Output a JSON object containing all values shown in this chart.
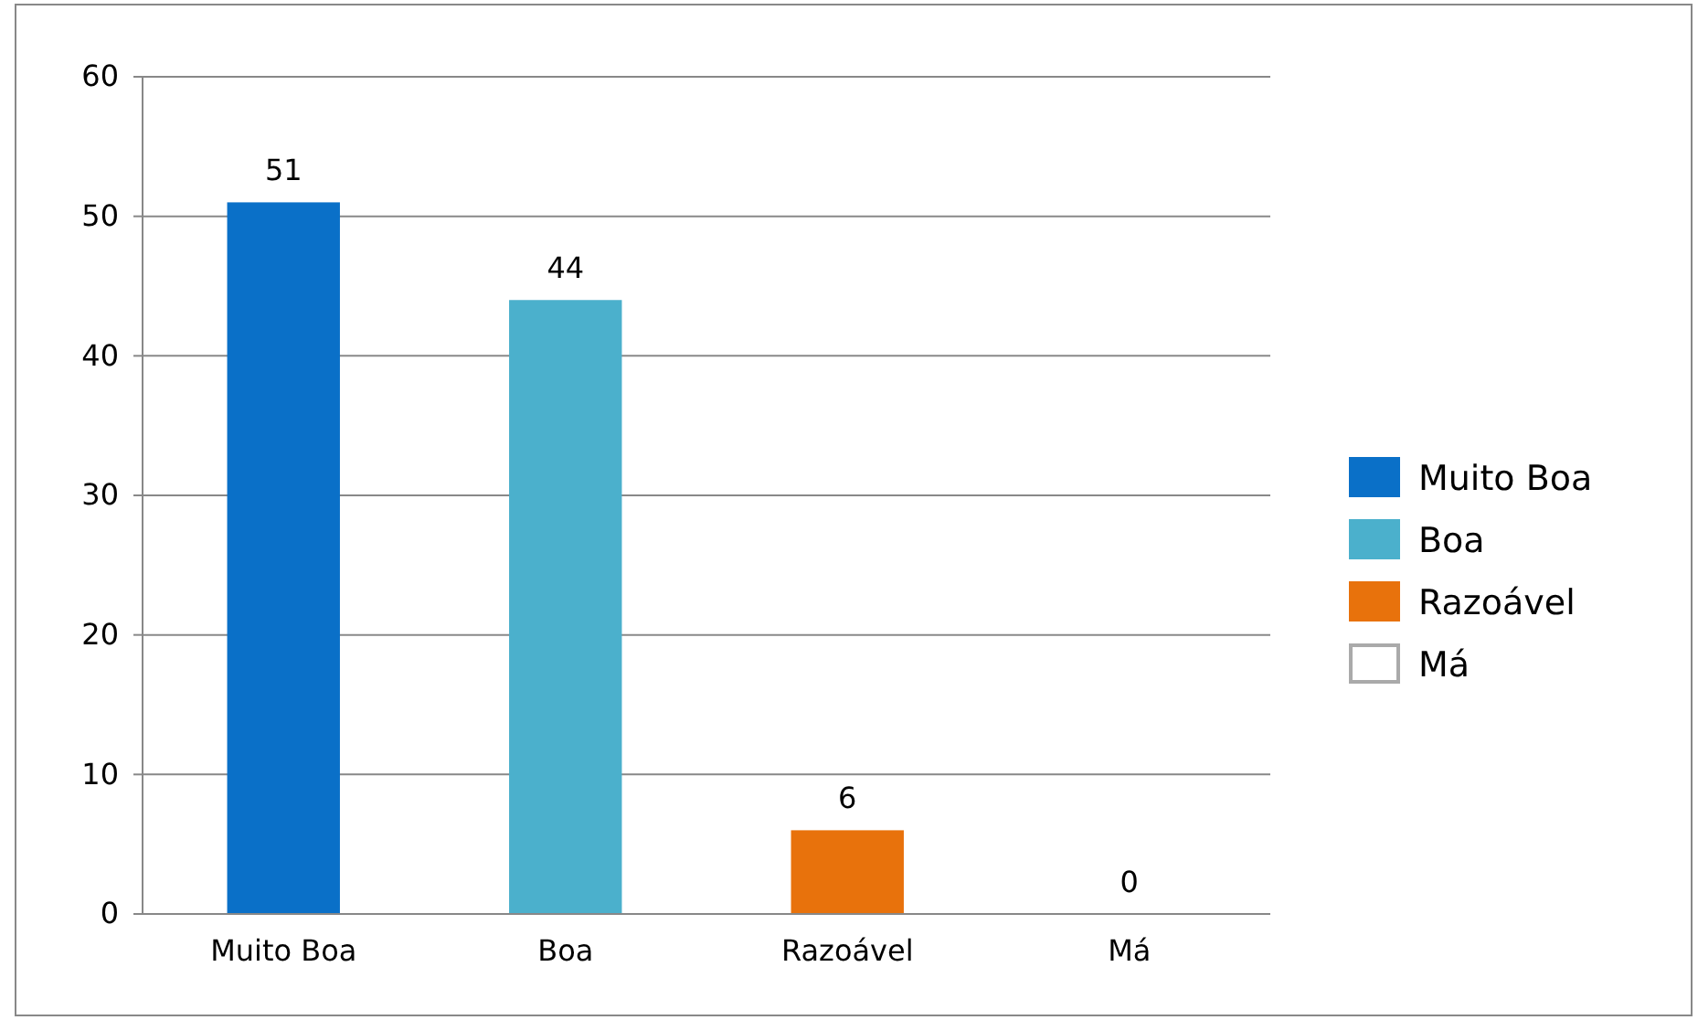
{
  "chart_data": {
    "type": "bar",
    "categories": [
      "Muito Boa",
      "Boa",
      "Razoável",
      "Má"
    ],
    "series": [
      {
        "name": "Muito Boa",
        "color": "#0a70c8",
        "values": [
          51,
          null,
          null,
          null
        ]
      },
      {
        "name": "Boa",
        "color": "#4bb0cc",
        "values": [
          null,
          44,
          null,
          null
        ]
      },
      {
        "name": "Razoável",
        "color": "#e8720c",
        "values": [
          null,
          null,
          6,
          null
        ]
      },
      {
        "name": "Má",
        "color": "#ffffff",
        "values": [
          null,
          null,
          null,
          0
        ]
      }
    ],
    "ylim": [
      0,
      60
    ],
    "yticks": [
      0,
      10,
      20,
      30,
      40,
      50,
      60
    ],
    "grid": "y",
    "legend": "right",
    "data_labels": true
  }
}
